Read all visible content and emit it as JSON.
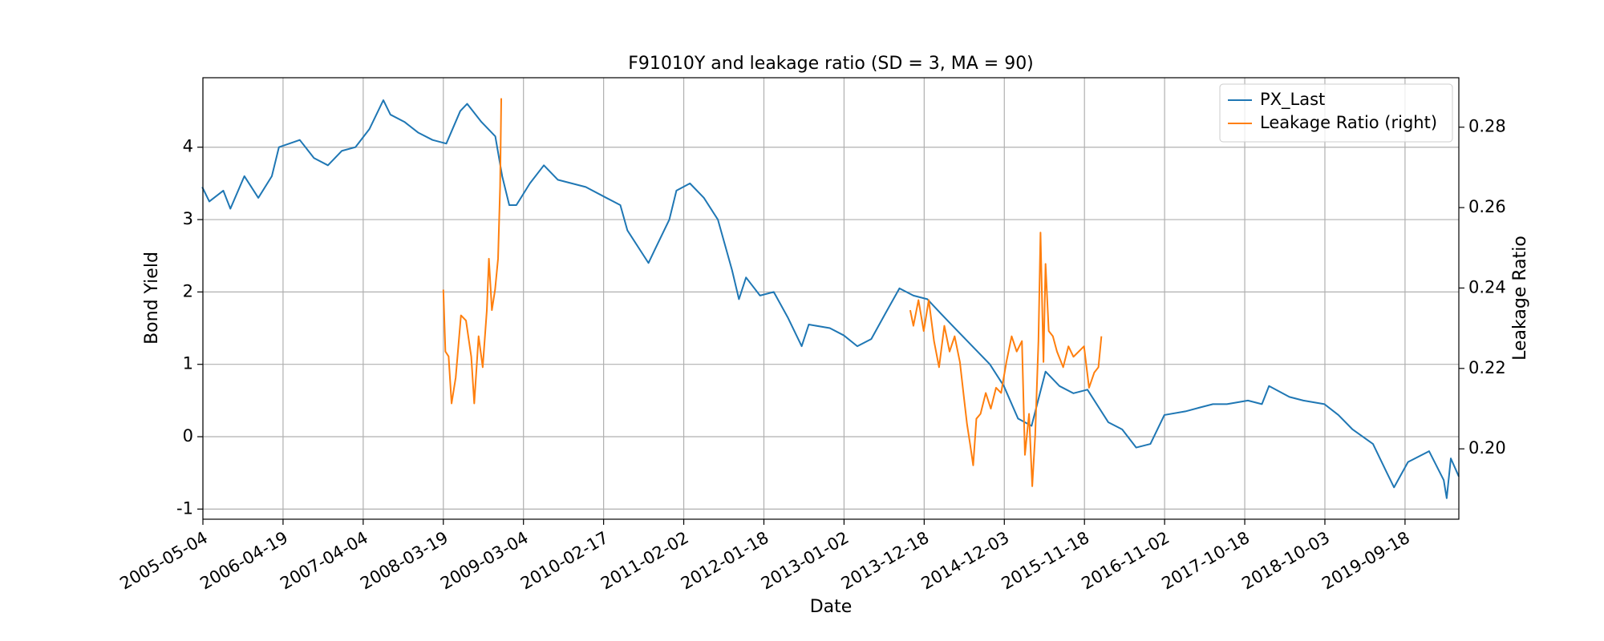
{
  "chart_data": {
    "type": "line",
    "title": "F91010Y and leakage ratio (SD = 3, MA = 90)",
    "xlabel": "Date",
    "ylabel": "Bond Yield",
    "y2label": "Leakage Ratio",
    "xlim": [
      "2005-05-04",
      "2020-05-10"
    ],
    "xticks": [
      "2005-05-04",
      "2006-04-19",
      "2007-04-04",
      "2008-03-19",
      "2009-03-04",
      "2010-02-17",
      "2011-02-02",
      "2012-01-18",
      "2013-01-02",
      "2013-12-18",
      "2014-12-03",
      "2015-11-18",
      "2016-11-02",
      "2017-10-18",
      "2018-10-03",
      "2019-09-18"
    ],
    "ylim": [
      -1.14,
      4.96
    ],
    "yticks": [
      -1,
      0,
      1,
      2,
      3,
      4
    ],
    "y2lim": [
      0.1825,
      0.2923
    ],
    "y2ticks": [
      {
        "value": 0.2,
        "label": "0.20"
      },
      0.22,
      0.24,
      0.26,
      0.28
    ],
    "grid": true,
    "legend": "upper right",
    "series": [
      {
        "name": "PX_Last",
        "color": "#1f77b4",
        "x": [
          "2005-05-01",
          "2005-06-01",
          "2005-08-01",
          "2005-09-01",
          "2005-11-01",
          "2006-01-01",
          "2006-03-01",
          "2006-04-01",
          "2006-07-01",
          "2006-09-01",
          "2006-11-01",
          "2007-01-01",
          "2007-03-01",
          "2007-05-01",
          "2007-07-01",
          "2007-08-01",
          "2007-10-01",
          "2007-12-01",
          "2008-02-01",
          "2008-04-01",
          "2008-06-01",
          "2008-07-01",
          "2008-09-01",
          "2008-11-01",
          "2008-12-01",
          "2009-01-01",
          "2009-02-01",
          "2009-04-01",
          "2009-06-01",
          "2009-08-01",
          "2009-10-01",
          "2009-12-01",
          "2010-03-01",
          "2010-05-01",
          "2010-06-01",
          "2010-09-01",
          "2010-10-01",
          "2010-12-01",
          "2011-01-01",
          "2011-03-01",
          "2011-05-01",
          "2011-07-01",
          "2011-09-01",
          "2011-10-01",
          "2011-11-01",
          "2012-01-01",
          "2012-03-01",
          "2012-05-01",
          "2012-07-01",
          "2012-08-01",
          "2012-11-01",
          "2013-01-01",
          "2013-03-01",
          "2013-05-01",
          "2013-07-01",
          "2013-09-01",
          "2013-11-01",
          "2014-01-01",
          "2014-03-01",
          "2014-05-01",
          "2014-07-01",
          "2014-10-01",
          "2014-12-01",
          "2015-02-01",
          "2015-04-01",
          "2015-06-01",
          "2015-08-01",
          "2015-10-01",
          "2015-12-01",
          "2016-03-01",
          "2016-05-01",
          "2016-07-01",
          "2016-09-01",
          "2016-11-01",
          "2017-02-01",
          "2017-04-01",
          "2017-06-01",
          "2017-08-01",
          "2017-11-01",
          "2018-01-01",
          "2018-02-01",
          "2018-05-01",
          "2018-07-01",
          "2018-10-01",
          "2018-12-01",
          "2019-02-01",
          "2019-05-01",
          "2019-07-01",
          "2019-08-01",
          "2019-10-01",
          "2020-01-01",
          "2020-03-05",
          "2020-03-18",
          "2020-04-05",
          "2020-05-10"
        ],
        "values": [
          3.45,
          3.25,
          3.4,
          3.15,
          3.6,
          3.3,
          3.6,
          4.0,
          4.1,
          3.85,
          3.75,
          3.95,
          4.0,
          4.25,
          4.65,
          4.45,
          4.35,
          4.2,
          4.1,
          4.05,
          4.5,
          4.6,
          4.35,
          4.15,
          3.6,
          3.2,
          3.2,
          3.5,
          3.75,
          3.55,
          3.5,
          3.45,
          3.3,
          3.2,
          2.85,
          2.4,
          2.6,
          3.0,
          3.4,
          3.5,
          3.3,
          3.0,
          2.3,
          1.9,
          2.2,
          1.95,
          2.0,
          1.65,
          1.25,
          1.55,
          1.5,
          1.4,
          1.25,
          1.35,
          1.7,
          2.05,
          1.95,
          1.9,
          1.7,
          1.5,
          1.3,
          1.0,
          0.7,
          0.25,
          0.15,
          0.9,
          0.7,
          0.6,
          0.65,
          0.2,
          0.1,
          -0.15,
          -0.1,
          0.3,
          0.35,
          0.4,
          0.45,
          0.45,
          0.5,
          0.45,
          0.7,
          0.55,
          0.5,
          0.45,
          0.3,
          0.1,
          -0.1,
          -0.5,
          -0.7,
          -0.35,
          -0.2,
          -0.6,
          -0.85,
          -0.3,
          -0.55
        ]
      },
      {
        "name": "Leakage Ratio (right)",
        "color": "#ff7f0e",
        "axis": "y2",
        "x": [
          "2008-03-19",
          "2008-03-28",
          "2008-04-11",
          "2008-04-24",
          "2008-05-12",
          "2008-06-04",
          "2008-06-26",
          "2008-07-19",
          "2008-08-01",
          "2008-08-20",
          "2008-09-07",
          "2008-09-25",
          "2008-10-04",
          "2008-10-17",
          "2008-10-31",
          "2008-11-13",
          "2008-11-22",
          "2008-11-27",
          "2011-05-01",
          "2013-10-18",
          "2013-11-01",
          "2013-11-23",
          "2013-12-16",
          "2014-01-07",
          "2014-01-30",
          "2014-02-21",
          "2014-03-16",
          "2014-04-08",
          "2014-04-30",
          "2014-05-23",
          "2014-06-10",
          "2014-06-23",
          "2014-07-07",
          "2014-07-20",
          "2014-08-03",
          "2014-08-21",
          "2014-09-13",
          "2014-10-05",
          "2014-10-28",
          "2014-11-19",
          "2014-12-12",
          "2015-01-04",
          "2015-01-26",
          "2015-02-18",
          "2015-03-03",
          "2015-03-21",
          "2015-04-04",
          "2015-04-17",
          "2015-05-01",
          "2015-05-10",
          "2015-05-23",
          "2015-06-01",
          "2015-06-15",
          "2015-07-03",
          "2015-07-21",
          "2015-08-17",
          "2015-09-09",
          "2015-10-01",
          "2015-10-24",
          "2015-11-16",
          "2015-12-08",
          "2015-12-31",
          "2016-01-18",
          "2016-01-31"
        ],
        "values": [
          0.2396,
          0.2242,
          0.223,
          0.2113,
          0.2177,
          0.2332,
          0.2319,
          0.2229,
          0.2113,
          0.228,
          0.2203,
          0.2345,
          0.2473,
          0.2345,
          0.2396,
          0.2473,
          0.2653,
          0.2872,
          null,
          0.2345,
          0.2306,
          0.237,
          0.2293,
          0.237,
          0.2268,
          0.2203,
          0.2306,
          0.2242,
          0.228,
          0.2216,
          0.2126,
          0.2062,
          0.201,
          0.1959,
          0.2075,
          0.2087,
          0.2139,
          0.21,
          0.2152,
          0.2139,
          0.2216,
          0.228,
          0.2242,
          0.2268,
          0.1985,
          0.2087,
          0.1907,
          0.2036,
          0.2268,
          0.2538,
          0.2216,
          0.246,
          0.2293,
          0.228,
          0.2242,
          0.2203,
          0.2255,
          0.2229,
          0.2242,
          0.2255,
          0.2152,
          0.219,
          0.2203,
          0.228
        ]
      }
    ]
  }
}
